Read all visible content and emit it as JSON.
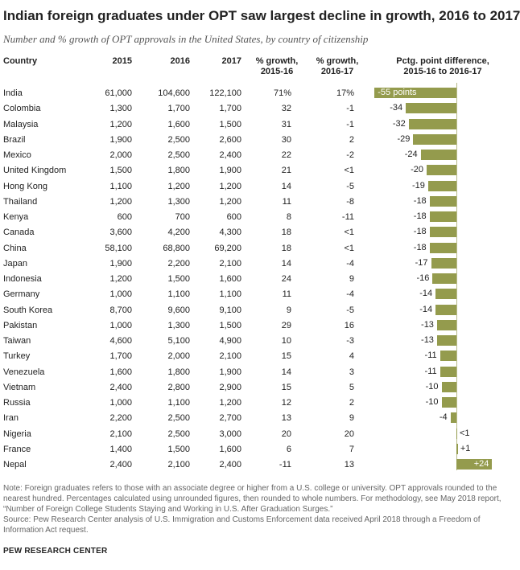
{
  "title": "Indian foreign graduates under OPT saw largest decline in growth, 2016 to 2017",
  "subtitle": "Number and % growth of OPT approvals in the United States, by country of citizenship",
  "headers": {
    "country": "Country",
    "y2015": "2015",
    "y2016": "2016",
    "y2017": "2017",
    "growth1516_line1": "% growth,",
    "growth1516_line2": "2015-16",
    "growth1617_line1": "% growth,",
    "growth1617_line2": "2016-17",
    "diff_line1": "Pctg. point difference,",
    "diff_line2": "2015-16 to 2016-17"
  },
  "colors": {
    "bar": "#949b4d",
    "text": "#222222",
    "note": "#666666"
  },
  "chart_data": {
    "type": "bar",
    "orientation": "horizontal",
    "title": "Indian foreign graduates under OPT saw largest decline in growth, 2016 to 2017",
    "subtitle": "Number and % growth of OPT approvals in the United States, by country of citizenship",
    "value_column": "Pctg. point difference, 2015-16 to 2016-17",
    "categories": [
      "India",
      "Colombia",
      "Malaysia",
      "Brazil",
      "Mexico",
      "United Kingdom",
      "Hong Kong",
      "Thailand",
      "Kenya",
      "Canada",
      "China",
      "Japan",
      "Indonesia",
      "Germany",
      "South Korea",
      "Pakistan",
      "Taiwan",
      "Turkey",
      "Venezuela",
      "Vietnam",
      "Russia",
      "Iran",
      "Nigeria",
      "France",
      "Nepal"
    ],
    "values": [
      -55,
      -34,
      -32,
      -29,
      -24,
      -20,
      -19,
      -18,
      -18,
      -18,
      -18,
      -17,
      -16,
      -14,
      -14,
      -13,
      -13,
      -11,
      -11,
      -10,
      -10,
      -4,
      0.4,
      1,
      24
    ],
    "xlim": [
      -55,
      24
    ],
    "rows": [
      {
        "country": "India",
        "y2015": "61,000",
        "y2016": "104,600",
        "y2017": "122,100",
        "g1516": "71%",
        "g1617": "17%",
        "diff": -55,
        "diff_label": "-55 points"
      },
      {
        "country": "Colombia",
        "y2015": "1,300",
        "y2016": "1,700",
        "y2017": "1,700",
        "g1516": "32",
        "g1617": "-1",
        "diff": -34,
        "diff_label": "-34"
      },
      {
        "country": "Malaysia",
        "y2015": "1,200",
        "y2016": "1,600",
        "y2017": "1,500",
        "g1516": "31",
        "g1617": "-1",
        "diff": -32,
        "diff_label": "-32"
      },
      {
        "country": "Brazil",
        "y2015": "1,900",
        "y2016": "2,500",
        "y2017": "2,600",
        "g1516": "30",
        "g1617": "2",
        "diff": -29,
        "diff_label": "-29"
      },
      {
        "country": "Mexico",
        "y2015": "2,000",
        "y2016": "2,500",
        "y2017": "2,400",
        "g1516": "22",
        "g1617": "-2",
        "diff": -24,
        "diff_label": "-24"
      },
      {
        "country": "United Kingdom",
        "y2015": "1,500",
        "y2016": "1,800",
        "y2017": "1,900",
        "g1516": "21",
        "g1617": "<1",
        "diff": -20,
        "diff_label": "-20"
      },
      {
        "country": "Hong Kong",
        "y2015": "1,100",
        "y2016": "1,200",
        "y2017": "1,200",
        "g1516": "14",
        "g1617": "-5",
        "diff": -19,
        "diff_label": "-19"
      },
      {
        "country": "Thailand",
        "y2015": "1,200",
        "y2016": "1,300",
        "y2017": "1,200",
        "g1516": "11",
        "g1617": "-8",
        "diff": -18,
        "diff_label": "-18"
      },
      {
        "country": "Kenya",
        "y2015": "600",
        "y2016": "700",
        "y2017": "600",
        "g1516": "8",
        "g1617": "-11",
        "diff": -18,
        "diff_label": "-18"
      },
      {
        "country": "Canada",
        "y2015": "3,600",
        "y2016": "4,200",
        "y2017": "4,300",
        "g1516": "18",
        "g1617": "<1",
        "diff": -18,
        "diff_label": "-18"
      },
      {
        "country": "China",
        "y2015": "58,100",
        "y2016": "68,800",
        "y2017": "69,200",
        "g1516": "18",
        "g1617": "<1",
        "diff": -18,
        "diff_label": "-18"
      },
      {
        "country": "Japan",
        "y2015": "1,900",
        "y2016": "2,200",
        "y2017": "2,100",
        "g1516": "14",
        "g1617": "-4",
        "diff": -17,
        "diff_label": "-17"
      },
      {
        "country": "Indonesia",
        "y2015": "1,200",
        "y2016": "1,500",
        "y2017": "1,600",
        "g1516": "24",
        "g1617": "9",
        "diff": -16,
        "diff_label": "-16"
      },
      {
        "country": "Germany",
        "y2015": "1,000",
        "y2016": "1,100",
        "y2017": "1,100",
        "g1516": "11",
        "g1617": "-4",
        "diff": -14,
        "diff_label": "-14"
      },
      {
        "country": "South Korea",
        "y2015": "8,700",
        "y2016": "9,600",
        "y2017": "9,100",
        "g1516": "9",
        "g1617": "-5",
        "diff": -14,
        "diff_label": "-14"
      },
      {
        "country": "Pakistan",
        "y2015": "1,000",
        "y2016": "1,300",
        "y2017": "1,500",
        "g1516": "29",
        "g1617": "16",
        "diff": -13,
        "diff_label": "-13"
      },
      {
        "country": "Taiwan",
        "y2015": "4,600",
        "y2016": "5,100",
        "y2017": "4,900",
        "g1516": "10",
        "g1617": "-3",
        "diff": -13,
        "diff_label": "-13"
      },
      {
        "country": "Turkey",
        "y2015": "1,700",
        "y2016": "2,000",
        "y2017": "2,100",
        "g1516": "15",
        "g1617": "4",
        "diff": -11,
        "diff_label": "-11"
      },
      {
        "country": "Venezuela",
        "y2015": "1,600",
        "y2016": "1,800",
        "y2017": "1,900",
        "g1516": "14",
        "g1617": "3",
        "diff": -11,
        "diff_label": "-11"
      },
      {
        "country": "Vietnam",
        "y2015": "2,400",
        "y2016": "2,800",
        "y2017": "2,900",
        "g1516": "15",
        "g1617": "5",
        "diff": -10,
        "diff_label": "-10"
      },
      {
        "country": "Russia",
        "y2015": "1,000",
        "y2016": "1,100",
        "y2017": "1,200",
        "g1516": "12",
        "g1617": "2",
        "diff": -10,
        "diff_label": "-10"
      },
      {
        "country": "Iran",
        "y2015": "2,200",
        "y2016": "2,500",
        "y2017": "2,700",
        "g1516": "13",
        "g1617": "9",
        "diff": -4,
        "diff_label": "-4"
      },
      {
        "country": "Nigeria",
        "y2015": "2,100",
        "y2016": "2,500",
        "y2017": "3,000",
        "g1516": "20",
        "g1617": "20",
        "diff": 0.4,
        "diff_label": "<1"
      },
      {
        "country": "France",
        "y2015": "1,400",
        "y2016": "1,500",
        "y2017": "1,600",
        "g1516": "6",
        "g1617": "7",
        "diff": 1,
        "diff_label": "+1"
      },
      {
        "country": "Nepal",
        "y2015": "2,400",
        "y2016": "2,100",
        "y2017": "2,400",
        "g1516": "-11",
        "g1617": "13",
        "diff": 24,
        "diff_label": "+24"
      }
    ]
  },
  "note": "Note: Foreign graduates refers to those with an associate degree or higher from a U.S. college or university. OPT approvals rounded to the nearest hundred. Percentages calculated using unrounded figures, then rounded to whole numbers. For methodology, see May 2018 report, “Number of Foreign College Students Staying and Working in U.S. After Graduation Surges.”",
  "source": "Source: Pew Research Center analysis of U.S. Immigration and Customs Enforcement data received April 2018 through a Freedom of Information Act request.",
  "brand": "PEW RESEARCH CENTER"
}
